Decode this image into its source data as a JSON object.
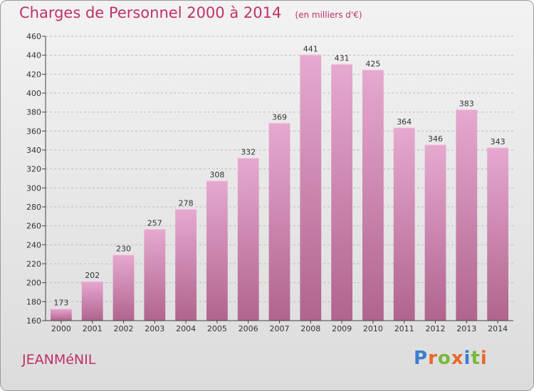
{
  "header": {
    "title": "Charges de Personnel 2000 à 2014",
    "subtitle": "(en milliers d'€)"
  },
  "footer": {
    "commune": "JEANMéNIL",
    "brand": "Proxiti"
  },
  "colors": {
    "bar_top": "#e6a9d0",
    "bar_bottom": "#b0648e",
    "title": "#c0306a",
    "brand": [
      "#3a7fd0",
      "#e8692a",
      "#79b83b",
      "#e8692a",
      "#3a7fd0",
      "#79b83b",
      "#e8692a"
    ]
  },
  "chart_data": {
    "type": "bar",
    "title": "Charges de Personnel 2000 à 2014",
    "subtitle": "(en milliers d'€)",
    "categories": [
      "2000",
      "2001",
      "2002",
      "2003",
      "2004",
      "2005",
      "2006",
      "2007",
      "2008",
      "2009",
      "2010",
      "2011",
      "2012",
      "2013",
      "2014"
    ],
    "values": [
      173,
      202,
      230,
      257,
      278,
      308,
      332,
      369,
      441,
      431,
      425,
      364,
      346,
      383,
      343
    ],
    "ylim": [
      160,
      460
    ],
    "yticks": [
      160,
      180,
      200,
      220,
      240,
      260,
      280,
      300,
      320,
      340,
      360,
      380,
      400,
      420,
      440,
      460
    ],
    "grid": "horizontal dashed",
    "legend": "none"
  }
}
